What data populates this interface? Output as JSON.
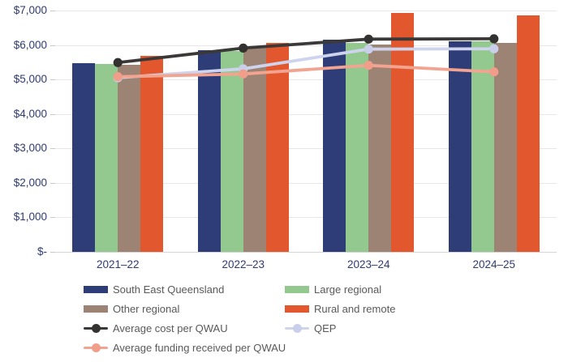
{
  "chart_data": {
    "type": "bar",
    "title": "",
    "categories": [
      "2021–22",
      "2022–23",
      "2023–24",
      "2024–25"
    ],
    "bar_series": [
      {
        "name": "South East Queensland",
        "color": "#2E3D78",
        "values": [
          5480,
          5850,
          6150,
          6110
        ]
      },
      {
        "name": "Large regional",
        "color": "#93C98E",
        "values": [
          5450,
          5820,
          6060,
          6100
        ]
      },
      {
        "name": "Other regional",
        "color": "#9C8374",
        "values": [
          5430,
          5950,
          6010,
          6060
        ]
      },
      {
        "name": "Rural and remote",
        "color": "#E2572E",
        "values": [
          5680,
          6060,
          6930,
          6870
        ]
      }
    ],
    "line_series": [
      {
        "name": "Average cost per QWAU",
        "color": "#3B3838",
        "marker_color": "#343131",
        "values": [
          5490,
          5910,
          6170,
          6180
        ]
      },
      {
        "name": "QEP",
        "color": "#CED4ED",
        "marker_color": "#C9CFEB",
        "values": [
          5050,
          5310,
          5880,
          5890
        ]
      },
      {
        "name": "Average funding received per QWAU",
        "color": "#F2A490",
        "marker_color": "#F09D89",
        "values": [
          5080,
          5160,
          5410,
          5220
        ]
      }
    ],
    "y_axis": {
      "min": 0,
      "max": 7000,
      "step": 1000,
      "tick_labels": [
        "$-",
        "$1,000",
        "$2,000",
        "$3,000",
        "$4,000",
        "$5,000",
        "$6,000",
        "$7,000"
      ]
    },
    "xlabel": "",
    "ylabel": "",
    "grid": true,
    "legend_position": "bottom",
    "colors": {
      "axis_text": "#2F3B73",
      "legend_text": "#595959",
      "gridline": "#E7E7E7",
      "axis_line": "#D6D6D6",
      "background": "#FFFFFF"
    }
  }
}
